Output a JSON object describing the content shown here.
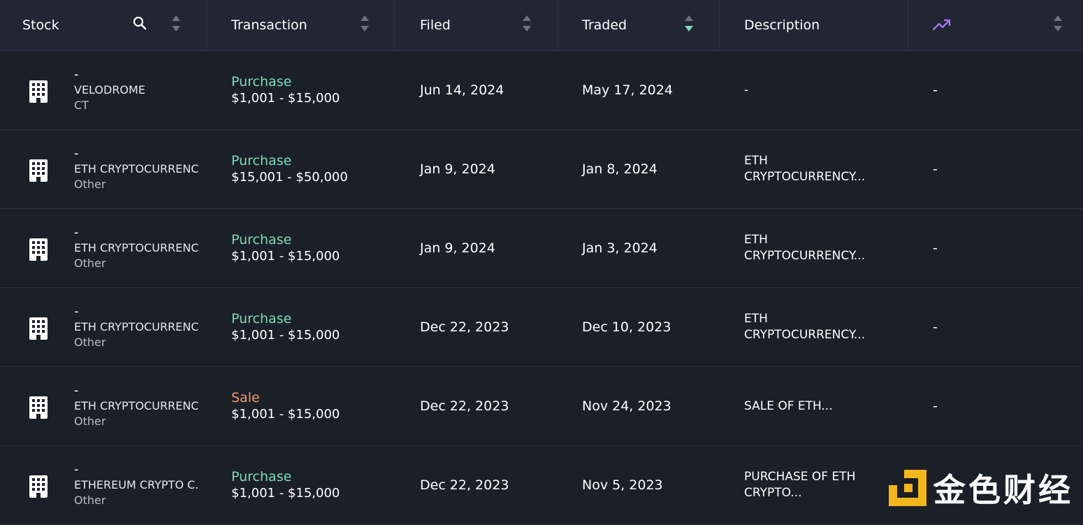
{
  "header": {
    "stock": "Stock",
    "transaction": "Transaction",
    "filed": "Filed",
    "traded": "Traded",
    "description": "Description",
    "performance_icon": "trending-up-icon",
    "active_sort": "traded-desc"
  },
  "colors": {
    "purchase": "#7ddbb7",
    "sale": "#f39668",
    "trend_icon": "#a675e6",
    "watermark_logo": "#f2b51c"
  },
  "rows": [
    {
      "ticker": "-",
      "company": "VELODROME",
      "asset_type": "CT",
      "tx_type": "Purchase",
      "tx_kind": "purchase",
      "amount": "$1,001 - $15,000",
      "filed": "Jun 14, 2024",
      "traded": "May 17, 2024",
      "desc_line1": "-",
      "desc_line2": "",
      "performance": "-"
    },
    {
      "ticker": "-",
      "company": "ETH CRYPTOCURRENC",
      "asset_type": "Other",
      "tx_type": "Purchase",
      "tx_kind": "purchase",
      "amount": "$15,001 - $50,000",
      "filed": "Jan 9, 2024",
      "traded": "Jan 8, 2024",
      "desc_line1": "ETH",
      "desc_line2": "CRYPTOCURRENCY...",
      "performance": "-"
    },
    {
      "ticker": "-",
      "company": "ETH CRYPTOCURRENC",
      "asset_type": "Other",
      "tx_type": "Purchase",
      "tx_kind": "purchase",
      "amount": "$1,001 - $15,000",
      "filed": "Jan 9, 2024",
      "traded": "Jan 3, 2024",
      "desc_line1": "ETH",
      "desc_line2": "CRYPTOCURRENCY...",
      "performance": "-"
    },
    {
      "ticker": "-",
      "company": "ETH CRYPTOCURRENC",
      "asset_type": "Other",
      "tx_type": "Purchase",
      "tx_kind": "purchase",
      "amount": "$1,001 - $15,000",
      "filed": "Dec 22, 2023",
      "traded": "Dec 10, 2023",
      "desc_line1": "ETH",
      "desc_line2": "CRYPTOCURRENCY...",
      "performance": "-"
    },
    {
      "ticker": "-",
      "company": "ETH CRYPTOCURRENC",
      "asset_type": "Other",
      "tx_type": "Sale",
      "tx_kind": "sale",
      "amount": "$1,001 - $15,000",
      "filed": "Dec 22, 2023",
      "traded": "Nov 24, 2023",
      "desc_line1": "SALE OF ETH...",
      "desc_line2": "",
      "performance": "-"
    },
    {
      "ticker": "-",
      "company": "ETHEREUM CRYPTO C.",
      "asset_type": "Other",
      "tx_type": "Purchase",
      "tx_kind": "purchase",
      "amount": "$1,001 - $15,000",
      "filed": "Dec 22, 2023",
      "traded": "Nov 5, 2023",
      "desc_line1": "PURCHASE OF ETH",
      "desc_line2": "CRYPTO...",
      "performance": "-"
    }
  ],
  "watermark": {
    "text": "金色财经"
  }
}
